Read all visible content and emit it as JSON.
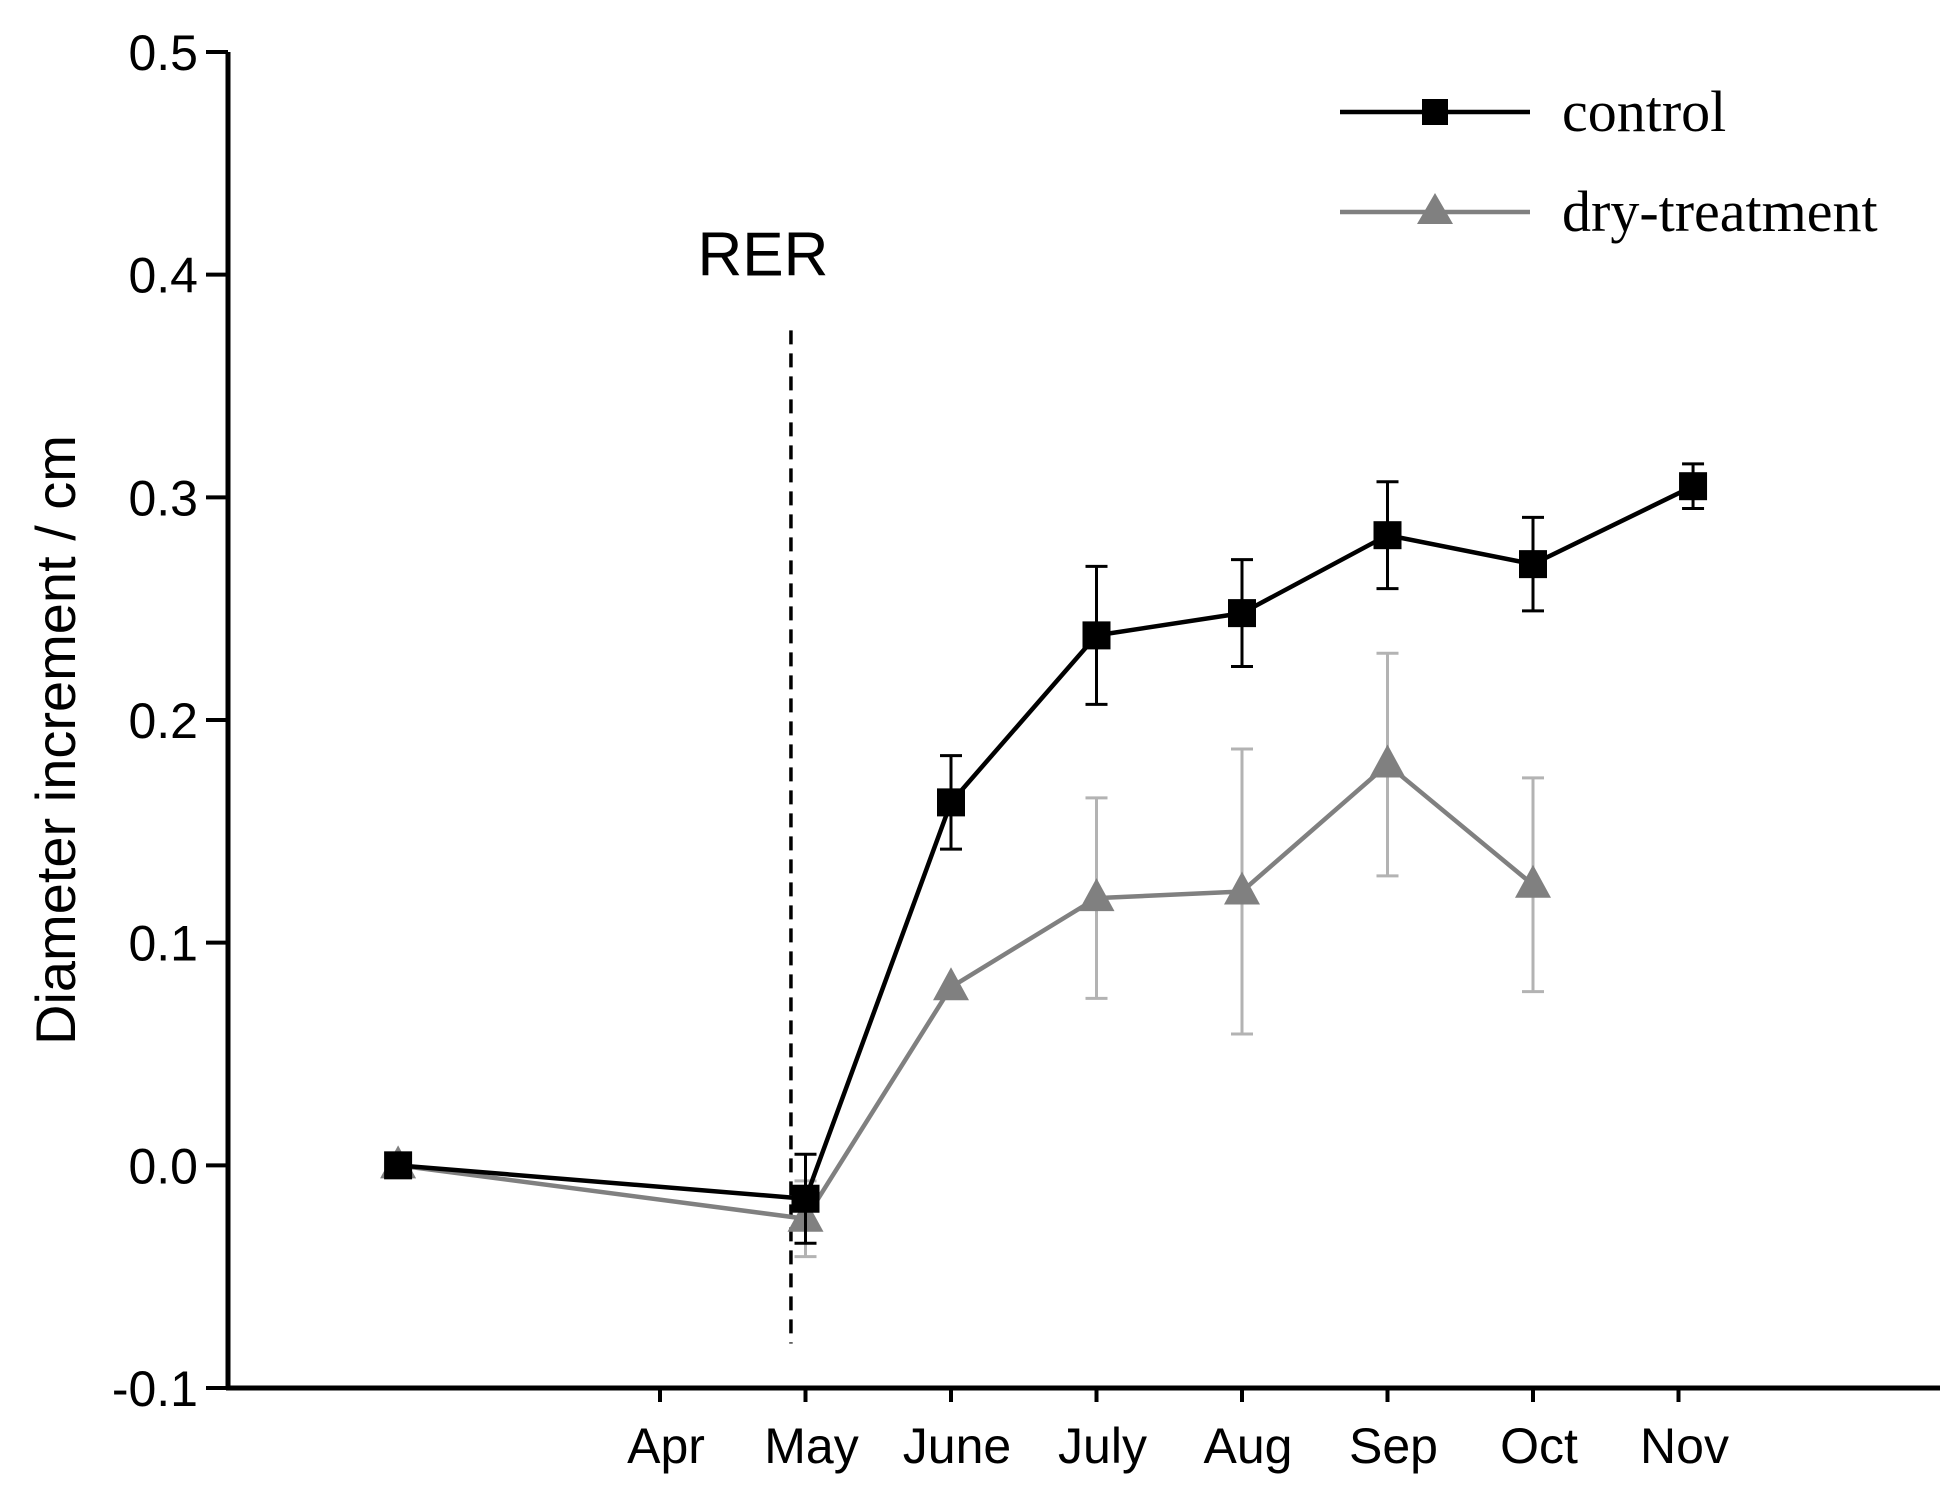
{
  "chart_data": {
    "type": "line",
    "title": "",
    "xlabel": "",
    "ylabel": "Diameter increment / cm",
    "x_tick_labels": [
      "Apr",
      "May",
      "June",
      "July",
      "Aug",
      "Sep",
      "Oct",
      "Nov"
    ],
    "y_tick_labels": [
      "-0.1",
      "0.0",
      "0.1",
      "0.2",
      "0.3",
      "0.4",
      "0.5"
    ],
    "y_ticks": [
      -0.1,
      0.0,
      0.1,
      0.2,
      0.3,
      0.4,
      0.5
    ],
    "ylim": [
      -0.1,
      0.5
    ],
    "x_index_range": [
      -2.2,
      9.5
    ],
    "annotation": {
      "label": "RER",
      "x_index": 0.9,
      "y_from": -0.08,
      "y_to": 0.375,
      "style": "dashed"
    },
    "legend_position": "top-right",
    "series": [
      {
        "name": "control",
        "color": "#000000",
        "marker": "square",
        "points": [
          {
            "x_index": -1.8,
            "y": 0.0,
            "err": 0.0
          },
          {
            "x_index": 1.0,
            "y": -0.015,
            "err": 0.02
          },
          {
            "x_index": 2.0,
            "y": 0.163,
            "err": 0.021
          },
          {
            "x_index": 3.0,
            "y": 0.238,
            "err": 0.031
          },
          {
            "x_index": 4.0,
            "y": 0.248,
            "err": 0.024
          },
          {
            "x_index": 5.0,
            "y": 0.283,
            "err": 0.024
          },
          {
            "x_index": 6.0,
            "y": 0.27,
            "err": 0.021
          },
          {
            "x_index": 7.1,
            "y": 0.305,
            "err": 0.01
          }
        ]
      },
      {
        "name": "dry-treatment",
        "color": "#808080",
        "marker": "triangle",
        "points": [
          {
            "x_index": -1.8,
            "y": 0.0,
            "err": 0.0
          },
          {
            "x_index": 1.0,
            "y": -0.024,
            "err": 0.017
          },
          {
            "x_index": 2.0,
            "y": 0.08,
            "err": 0.0
          },
          {
            "x_index": 3.0,
            "y": 0.12,
            "err": 0.045
          },
          {
            "x_index": 4.0,
            "y": 0.123,
            "err": 0.064
          },
          {
            "x_index": 5.0,
            "y": 0.18,
            "err": 0.05
          },
          {
            "x_index": 6.0,
            "y": 0.126,
            "err": 0.048
          }
        ]
      }
    ]
  }
}
